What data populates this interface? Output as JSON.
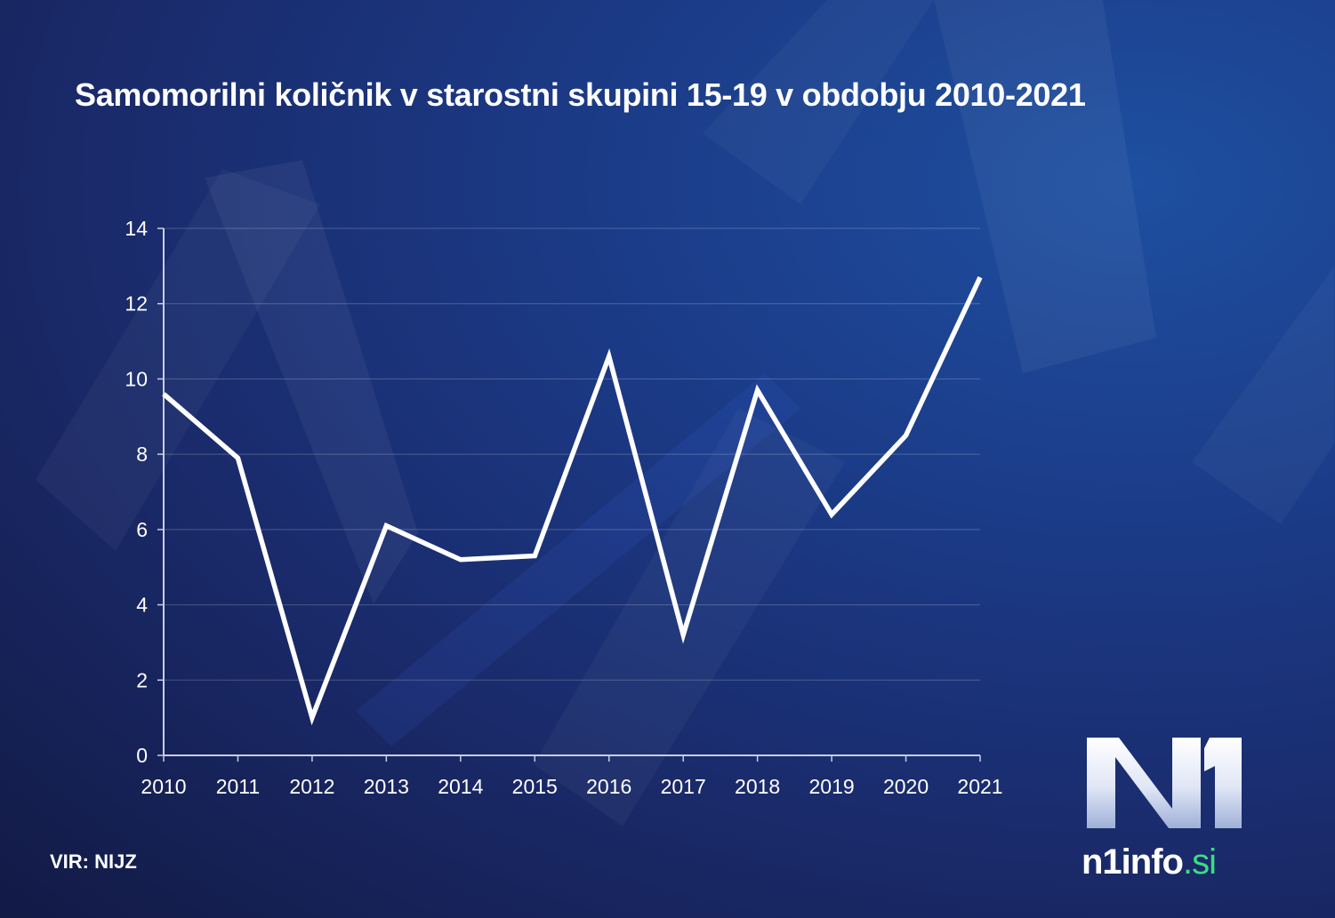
{
  "title": "Samomorilni količnik v starostni skupini 15-19 v obdobju 2010-2021",
  "source": "VIR: NIJZ",
  "logo": {
    "mark": "N1",
    "name": "n1info",
    "tld": ".si"
  },
  "colors": {
    "line": "#ffffff",
    "axis": "#c9cfe6",
    "grid": "rgba(255,255,255,0.22)"
  },
  "chart_data": {
    "type": "line",
    "title": "Samomorilni količnik v starostni skupini 15-19 v obdobju 2010-2021",
    "xlabel": "",
    "ylabel": "",
    "categories": [
      "2010",
      "2011",
      "2012",
      "2013",
      "2014",
      "2015",
      "2016",
      "2017",
      "2018",
      "2019",
      "2020",
      "2021"
    ],
    "values": [
      9.6,
      7.9,
      1.0,
      6.1,
      5.2,
      5.3,
      10.6,
      3.2,
      9.7,
      6.4,
      8.5,
      12.7
    ],
    "yticks": [
      0,
      2,
      4,
      6,
      8,
      10,
      12,
      14
    ],
    "ylim": [
      0,
      14
    ],
    "grid": true,
    "legend": "none"
  }
}
